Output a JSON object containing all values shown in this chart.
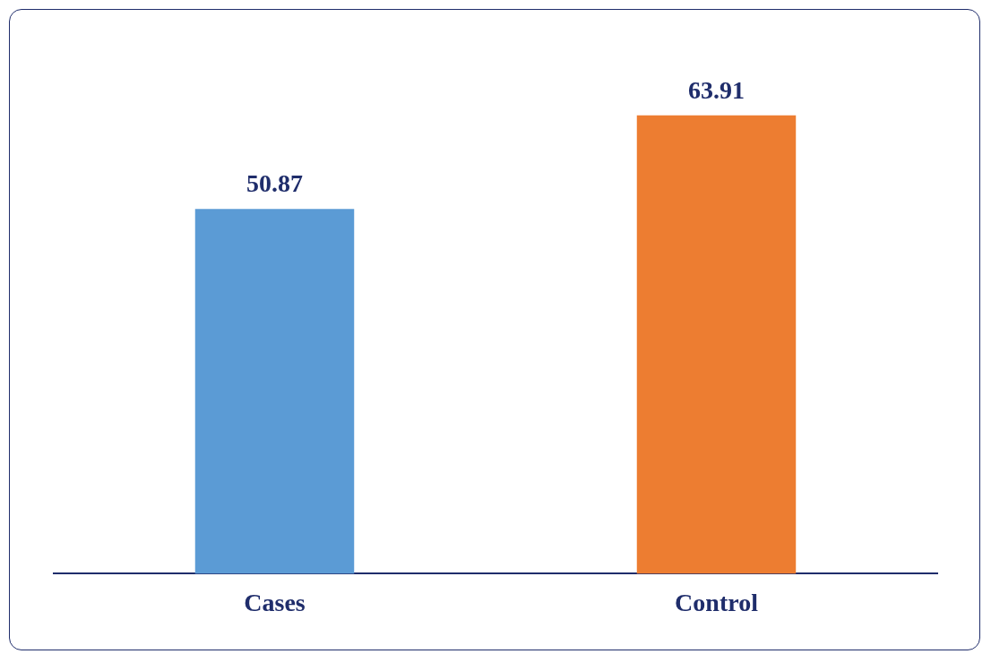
{
  "chart_data": {
    "type": "bar",
    "categories": [
      "Cases",
      "Control"
    ],
    "values": [
      50.87,
      63.91
    ],
    "colors": [
      "#5b9bd5",
      "#ed7d31"
    ],
    "data_labels": true,
    "grid": false,
    "legend": false
  }
}
